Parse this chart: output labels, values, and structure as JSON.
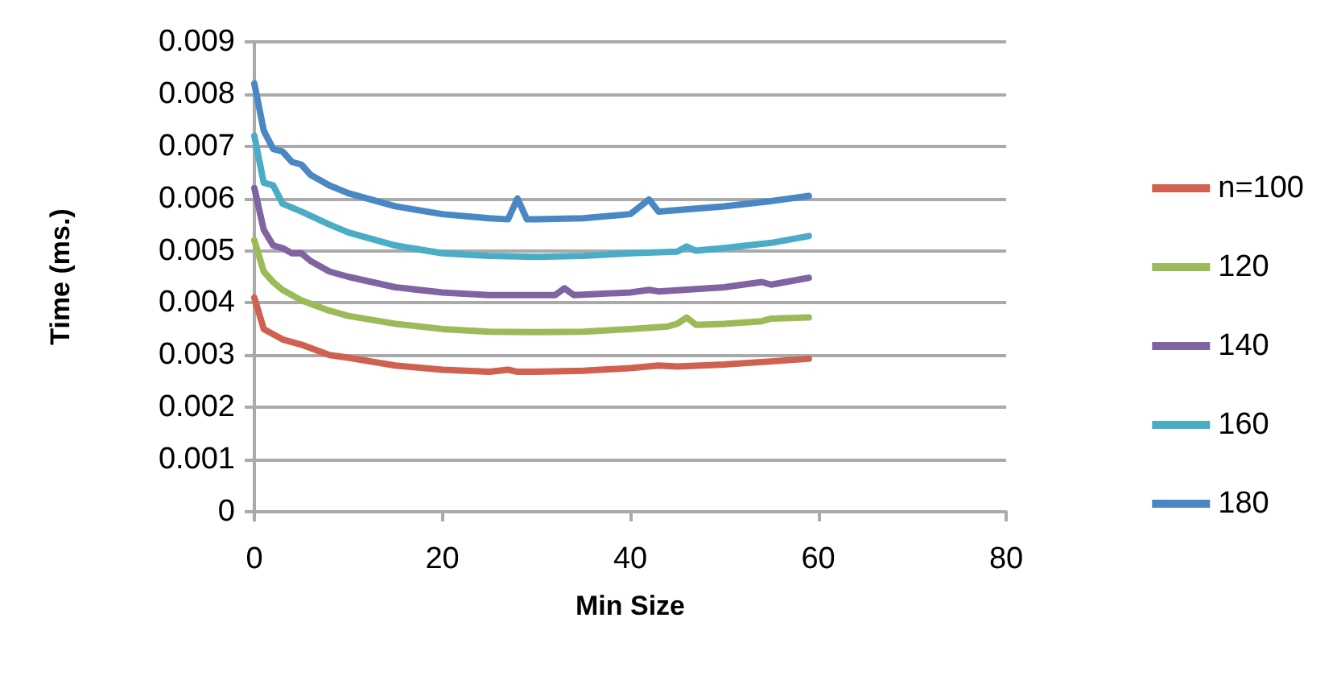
{
  "chart_data": {
    "type": "line",
    "xlabel": "Min Size",
    "ylabel": "Time (ms.)",
    "xlim": [
      0,
      80
    ],
    "xticks": [
      0,
      20,
      40,
      60,
      80
    ],
    "ylim": [
      0,
      0.009
    ],
    "yticks": [
      0,
      0.001,
      0.002,
      0.003,
      0.004,
      0.005,
      0.006,
      0.007,
      0.008,
      0.009
    ],
    "grid": "y",
    "legend": "right",
    "marker": "none",
    "line_style": "solid",
    "series": [
      {
        "name": "n=100",
        "color": "#d0604f",
        "x": [
          0,
          1,
          2,
          3,
          5,
          8,
          10,
          15,
          20,
          25,
          27,
          28,
          30,
          35,
          40,
          43,
          45,
          50,
          55,
          59
        ],
        "values": [
          0.0041,
          0.0035,
          0.0034,
          0.0033,
          0.0032,
          0.003,
          0.00295,
          0.0028,
          0.00272,
          0.00268,
          0.00272,
          0.00268,
          0.00268,
          0.0027,
          0.00275,
          0.0028,
          0.00278,
          0.00282,
          0.00288,
          0.00293
        ]
      },
      {
        "name": "120",
        "color": "#9bbb59",
        "x": [
          0,
          1,
          2,
          3,
          5,
          8,
          10,
          15,
          20,
          25,
          30,
          35,
          40,
          44,
          45,
          46,
          47,
          50,
          54,
          55,
          59
        ],
        "values": [
          0.0052,
          0.0046,
          0.0044,
          0.00425,
          0.00405,
          0.00385,
          0.00375,
          0.0036,
          0.0035,
          0.00345,
          0.00344,
          0.00345,
          0.0035,
          0.00355,
          0.0036,
          0.00372,
          0.00358,
          0.0036,
          0.00365,
          0.0037,
          0.00372
        ]
      },
      {
        "name": "140",
        "color": "#8064a2",
        "x": [
          0,
          1,
          2,
          3,
          4,
          5,
          6,
          8,
          10,
          15,
          20,
          25,
          30,
          32,
          33,
          34,
          40,
          42,
          43,
          50,
          54,
          55,
          59
        ],
        "values": [
          0.0062,
          0.0054,
          0.0051,
          0.00505,
          0.00495,
          0.00495,
          0.0048,
          0.0046,
          0.0045,
          0.0043,
          0.0042,
          0.00415,
          0.00415,
          0.00415,
          0.00428,
          0.00415,
          0.0042,
          0.00425,
          0.00422,
          0.0043,
          0.0044,
          0.00435,
          0.00448
        ]
      },
      {
        "name": "160",
        "color": "#4bacc6",
        "x": [
          0,
          1,
          2,
          3,
          5,
          8,
          10,
          15,
          20,
          25,
          30,
          35,
          40,
          45,
          46,
          47,
          50,
          55,
          59
        ],
        "values": [
          0.0072,
          0.0063,
          0.00625,
          0.0059,
          0.00575,
          0.0055,
          0.00535,
          0.0051,
          0.00495,
          0.0049,
          0.00488,
          0.0049,
          0.00495,
          0.00498,
          0.00508,
          0.005,
          0.00505,
          0.00515,
          0.00528
        ]
      },
      {
        "name": "180",
        "color": "#4a87c5",
        "x": [
          0,
          1,
          2,
          3,
          4,
          5,
          6,
          8,
          10,
          15,
          20,
          25,
          27,
          28,
          29,
          30,
          35,
          40,
          42,
          43,
          50,
          55,
          59
        ],
        "values": [
          0.0082,
          0.0073,
          0.00695,
          0.0069,
          0.0067,
          0.00665,
          0.00645,
          0.00625,
          0.0061,
          0.00585,
          0.0057,
          0.00562,
          0.0056,
          0.006,
          0.0056,
          0.0056,
          0.00562,
          0.0057,
          0.00598,
          0.00575,
          0.00585,
          0.00595,
          0.00605
        ]
      }
    ]
  }
}
